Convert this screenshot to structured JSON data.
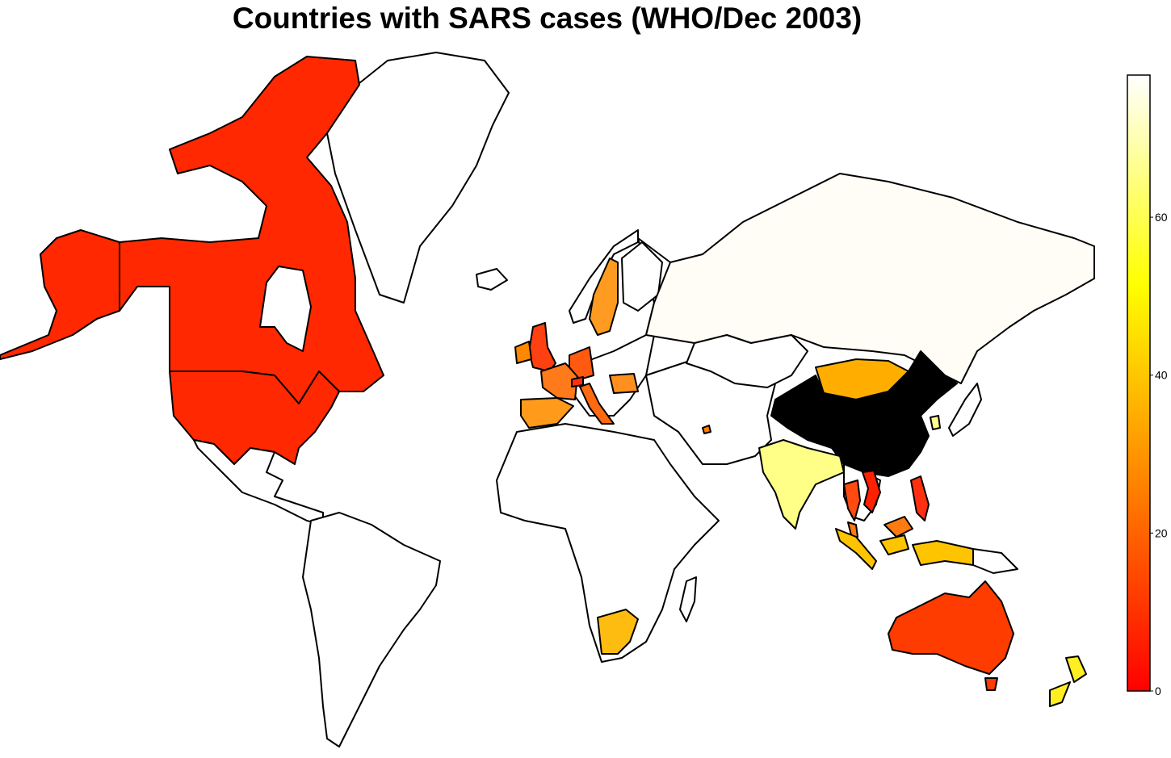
{
  "title": "Countries with SARS cases (WHO/Dec 2003)",
  "legend": {
    "type": "continuous-colorbar",
    "palette": [
      "#ff0000",
      "#ff8000",
      "#ffff00",
      "#ffffff"
    ],
    "range": [
      0,
      78
    ],
    "ticks": [
      {
        "value": 0,
        "label": "0"
      },
      {
        "value": 20,
        "label": "20"
      },
      {
        "value": 40,
        "label": "40"
      },
      {
        "value": 60,
        "label": "60"
      }
    ]
  },
  "regions": [
    {
      "name": "Canada",
      "color": "#ff2800"
    },
    {
      "name": "United States",
      "color": "#ff2800"
    },
    {
      "name": "Russia",
      "color": "#fffdf6"
    },
    {
      "name": "China",
      "color": "#000000"
    },
    {
      "name": "Mongolia",
      "color": "#ffae00"
    },
    {
      "name": "India",
      "color": "#ffff88"
    },
    {
      "name": "Australia",
      "color": "#ff3c00"
    },
    {
      "name": "New Zealand",
      "color": "#ffee22"
    },
    {
      "name": "South Africa",
      "color": "#ffbc10"
    },
    {
      "name": "Spain",
      "color": "#ff9a1a"
    },
    {
      "name": "France",
      "color": "#ff7a1a"
    },
    {
      "name": "Germany",
      "color": "#ff5a10"
    },
    {
      "name": "Italy",
      "color": "#ff6a10"
    },
    {
      "name": "Switzerland",
      "color": "#ff3010"
    },
    {
      "name": "Sweden",
      "color": "#ff9b20"
    },
    {
      "name": "United Kingdom",
      "color": "#ff4010"
    },
    {
      "name": "Ireland",
      "color": "#ff8800"
    },
    {
      "name": "Romania",
      "color": "#ff9020"
    },
    {
      "name": "Thailand",
      "color": "#ff4a10"
    },
    {
      "name": "Vietnam",
      "color": "#ff2000"
    },
    {
      "name": "Malaysia",
      "color": "#ff7a10"
    },
    {
      "name": "Philippines",
      "color": "#ff3010"
    },
    {
      "name": "Indonesia",
      "color": "#ffc400"
    },
    {
      "name": "Kuwait",
      "color": "#ff8000"
    },
    {
      "name": "South Korea",
      "color": "#ffff90"
    }
  ]
}
